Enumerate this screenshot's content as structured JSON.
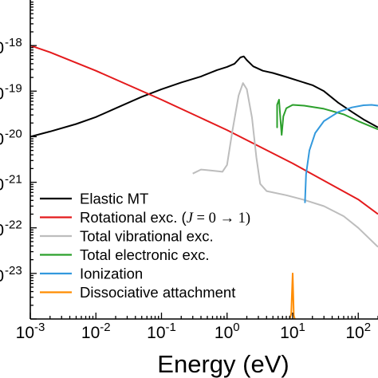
{
  "chart_data": {
    "type": "line",
    "xlabel": "Energy (eV)",
    "xscale": "log",
    "yscale": "log",
    "xlim": [
      0.001,
      200
    ],
    "ylim": [
      1e-24,
      1e-17
    ],
    "x_ticks": [
      {
        "base": "10",
        "exp": "-3"
      },
      {
        "base": "10",
        "exp": "-2"
      },
      {
        "base": "10",
        "exp": "-1"
      },
      {
        "base": "10",
        "exp": "0"
      },
      {
        "base": "10",
        "exp": "1"
      },
      {
        "base": "10",
        "exp": "2"
      }
    ],
    "y_ticks": [
      {
        "base": "",
        "exp": "-18"
      },
      {
        "base": "",
        "exp": "-19"
      },
      {
        "base": "",
        "exp": "-20"
      },
      {
        "base": "",
        "exp": "-21"
      },
      {
        "base": "",
        "exp": "-22"
      },
      {
        "base": "",
        "exp": "-23"
      }
    ],
    "legend_position": "bottom-left",
    "series": [
      {
        "name": "Elastic MT",
        "color": "#000000",
        "points": [
          [
            0.001,
            1e-20
          ],
          [
            0.002,
            1.3e-20
          ],
          [
            0.005,
            1.9e-20
          ],
          [
            0.01,
            2.7e-20
          ],
          [
            0.02,
            4.2e-20
          ],
          [
            0.05,
            7.5e-20
          ],
          [
            0.1,
            1.1e-19
          ],
          [
            0.2,
            1.55e-19
          ],
          [
            0.4,
            2.1e-19
          ],
          [
            0.7,
            2.9e-19
          ],
          [
            1.0,
            3.4e-19
          ],
          [
            1.3,
            4e-19
          ],
          [
            1.6,
            5.5e-19
          ],
          [
            1.8,
            5.8e-19
          ],
          [
            2.0,
            4.8e-19
          ],
          [
            2.5,
            3.5e-19
          ],
          [
            3.5,
            2.8e-19
          ],
          [
            5,
            2.5e-19
          ],
          [
            8,
            2.05e-19
          ],
          [
            12,
            1.7e-19
          ],
          [
            20,
            1.35e-19
          ],
          [
            30,
            1e-19
          ],
          [
            50,
            5.5e-20
          ],
          [
            80,
            3.5e-20
          ],
          [
            120,
            2.4e-20
          ],
          [
            200,
            1.6e-20
          ]
        ]
      },
      {
        "name": "Rotational exc. (J = 0 → 1)",
        "label_main": "Rotational exc. (",
        "label_var": "J",
        "label_rest": " = 0 → 1)",
        "color": "#e41a1c",
        "points": [
          [
            0.001,
            1e-18
          ],
          [
            0.002,
            7.1e-19
          ],
          [
            0.01,
            2.8e-19
          ],
          [
            0.1,
            6.5e-20
          ],
          [
            1,
            1.4e-20
          ],
          [
            10,
            2.6e-21
          ],
          [
            100,
            4.2e-22
          ],
          [
            200,
            2e-22
          ]
        ]
      },
      {
        "name": "Total vibrational exc.",
        "color": "#bdbdbd",
        "points": [
          [
            0.3,
            1.55e-21
          ],
          [
            0.4,
            1.9e-21
          ],
          [
            0.6,
            1.8e-21
          ],
          [
            0.85,
            1.7e-21
          ],
          [
            1.0,
            2.4e-21
          ],
          [
            1.2,
            1.3e-20
          ],
          [
            1.5,
            8e-20
          ],
          [
            1.75,
            1.5e-19
          ],
          [
            2.0,
            1.1e-19
          ],
          [
            2.4,
            2.6e-20
          ],
          [
            2.8,
            3.5e-21
          ],
          [
            3.2,
            9.2e-22
          ],
          [
            4,
            6.4e-22
          ],
          [
            8,
            5.2e-22
          ],
          [
            15,
            4.1e-22
          ],
          [
            30,
            3e-22
          ],
          [
            60,
            1.8e-22
          ],
          [
            100,
            1e-22
          ],
          [
            200,
            3.8e-23
          ]
        ]
      },
      {
        "name": "Total electronic exc.",
        "color": "#2ca02c",
        "points": [
          [
            5.8,
            5e-20
          ],
          [
            5.8,
            1.6e-20
          ],
          [
            5.8,
            5e-20
          ],
          [
            6.2,
            6.5e-20
          ],
          [
            6.5,
            2.5e-20
          ],
          [
            6.8,
            1.1e-20
          ],
          [
            7.2,
            2.8e-20
          ],
          [
            8,
            4.2e-20
          ],
          [
            10,
            5e-20
          ],
          [
            15,
            4.8e-20
          ],
          [
            30,
            4.1e-20
          ],
          [
            60,
            3.1e-20
          ],
          [
            100,
            2.2e-20
          ],
          [
            200,
            1.45e-20
          ]
        ]
      },
      {
        "name": "Ionization",
        "color": "#3399dd",
        "points": [
          [
            15.4,
            3.5e-22
          ],
          [
            16,
            1.5e-21
          ],
          [
            18,
            5e-21
          ],
          [
            22,
            1.2e-20
          ],
          [
            30,
            2.2e-20
          ],
          [
            50,
            3.5e-20
          ],
          [
            80,
            4.4e-20
          ],
          [
            120,
            4.9e-20
          ],
          [
            160,
            5e-20
          ],
          [
            200,
            4.8e-20
          ]
        ]
      },
      {
        "name": "Dissociative attachment",
        "color": "#ff8c00",
        "points": [
          [
            9.0,
            1e-24
          ],
          [
            9.5,
            1.3e-24
          ],
          [
            10.0,
            1e-23
          ],
          [
            10.4,
            1.2e-24
          ],
          [
            10.8,
            1e-24
          ]
        ]
      }
    ]
  }
}
